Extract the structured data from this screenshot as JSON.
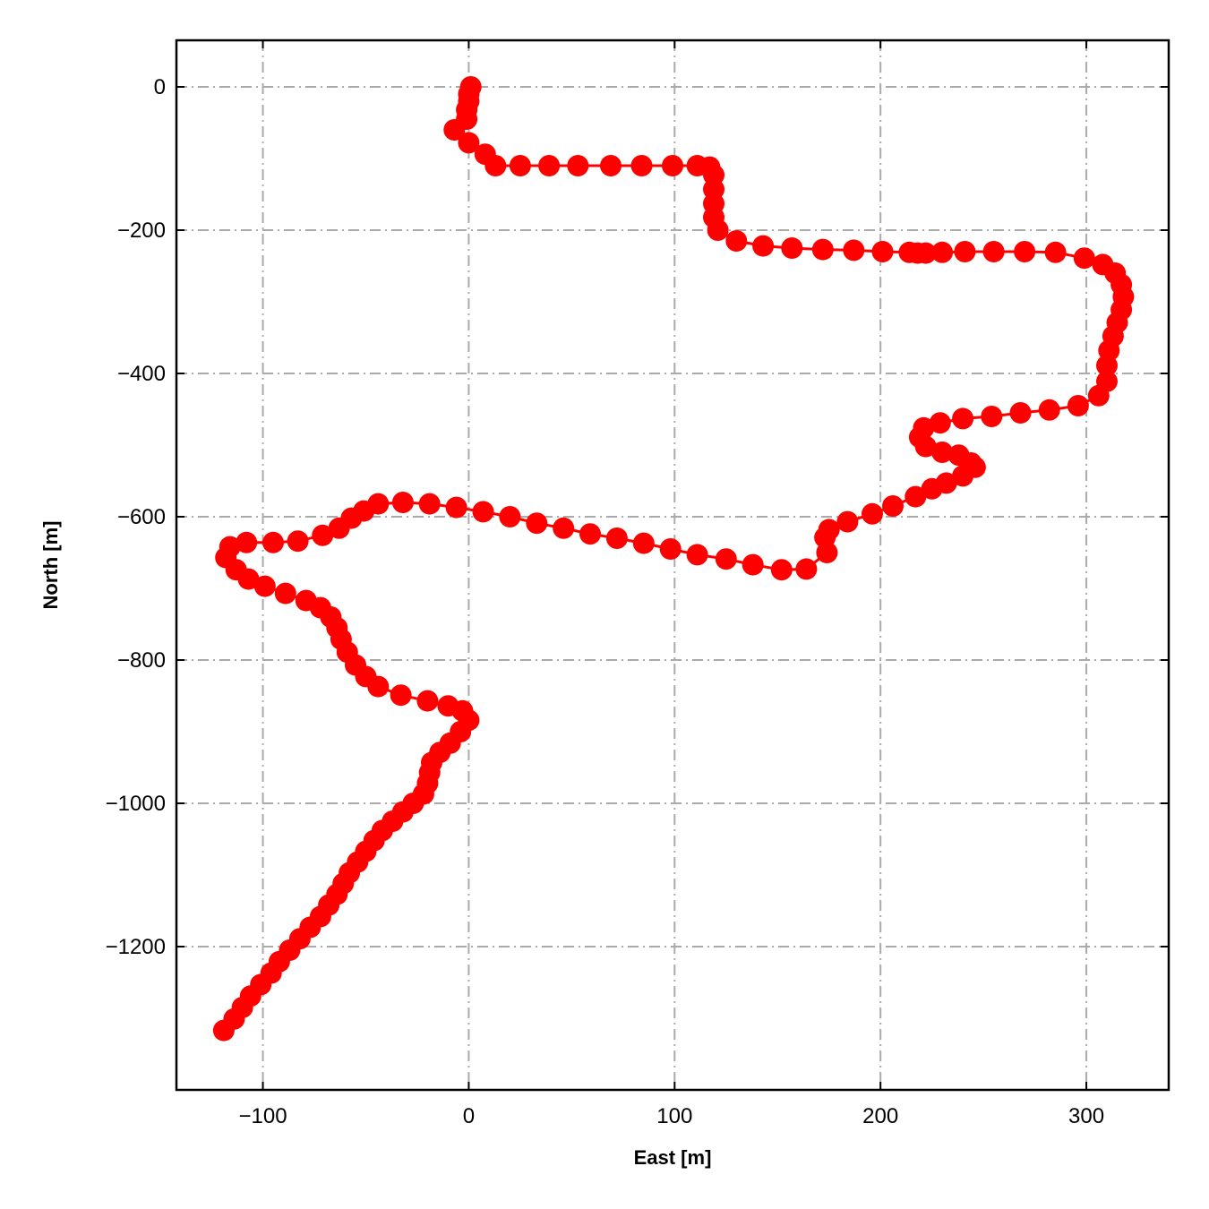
{
  "chart_data": {
    "type": "line",
    "title": "",
    "xlabel": "East [m]",
    "ylabel": "North [m]",
    "xlim": [
      -142,
      340
    ],
    "ylim": [
      -1400,
      65
    ],
    "xticks": [
      -100,
      0,
      100,
      200,
      300
    ],
    "yticks": [
      0,
      -200,
      -400,
      -600,
      -800,
      -1000,
      -1200
    ],
    "xtick_labels": [
      "−100",
      "0",
      "100",
      "200",
      "300"
    ],
    "ytick_labels": [
      "0",
      "−200",
      "−400",
      "−600",
      "−800",
      "−1000",
      "−1200"
    ],
    "grid": true,
    "grid_style": "dash-dot",
    "legend": "none",
    "colors": {
      "series": "#ff0000",
      "grid": "#aaaaaa",
      "frame": "#000000"
    },
    "series": [
      {
        "marker": "circle",
        "x": [
          1,
          0,
          0,
          -1,
          -1,
          -7,
          0,
          8,
          13,
          25,
          39,
          53,
          69,
          84,
          99,
          111,
          117,
          119,
          119,
          119,
          119,
          121,
          130,
          143,
          157,
          172,
          187,
          201,
          214,
          218,
          222,
          230,
          241,
          255,
          270,
          285,
          299,
          308,
          314,
          317,
          318,
          317,
          315,
          313,
          311,
          310,
          310,
          306,
          296,
          282,
          268,
          254,
          240,
          229,
          221,
          219,
          222,
          230,
          238,
          244,
          246,
          240,
          232,
          225,
          217,
          206,
          196,
          184,
          175,
          173,
          174,
          164,
          152,
          138,
          125,
          111,
          98,
          85,
          72,
          59,
          46,
          33,
          20,
          7,
          -6,
          -19,
          -32,
          -44,
          -51,
          -57,
          -63,
          -71,
          -83,
          -95,
          -108,
          -116,
          -118,
          -113,
          -107,
          -99,
          -89,
          -79,
          -72,
          -67,
          -64,
          -62,
          -59,
          -55,
          -50,
          -44,
          -33,
          -20,
          -10,
          -3,
          0,
          -4,
          -9,
          -14,
          -18,
          -19,
          -20,
          -22,
          -27,
          -32,
          -37,
          -42,
          -46,
          -50,
          -54,
          -58,
          -61,
          -64,
          -68,
          -72,
          -77,
          -82,
          -87,
          -92,
          -96,
          -101,
          -106,
          -110,
          -114,
          -119
        ],
        "y": [
          0,
          -10,
          -20,
          -32,
          -45,
          -60,
          -78,
          -94,
          -110,
          -110,
          -110,
          -110,
          -110,
          -110,
          -110,
          -110,
          -112,
          -123,
          -143,
          -163,
          -182,
          -200,
          -215,
          -222,
          -225,
          -227,
          -228,
          -230,
          -231,
          -232,
          -232,
          -231,
          -230,
          -230,
          -230,
          -231,
          -239,
          -248,
          -260,
          -276,
          -293,
          -311,
          -329,
          -348,
          -368,
          -389,
          -411,
          -431,
          -445,
          -451,
          -455,
          -460,
          -463,
          -469,
          -476,
          -489,
          -502,
          -510,
          -514,
          -525,
          -531,
          -543,
          -553,
          -561,
          -572,
          -585,
          -596,
          -607,
          -618,
          -629,
          -650,
          -673,
          -674,
          -667,
          -659,
          -653,
          -645,
          -637,
          -630,
          -624,
          -616,
          -609,
          -600,
          -593,
          -587,
          -582,
          -580,
          -582,
          -592,
          -602,
          -616,
          -626,
          -634,
          -636,
          -636,
          -642,
          -657,
          -674,
          -687,
          -697,
          -707,
          -717,
          -727,
          -740,
          -755,
          -771,
          -789,
          -807,
          -823,
          -837,
          -849,
          -857,
          -864,
          -871,
          -884,
          -900,
          -916,
          -929,
          -943,
          -957,
          -972,
          -987,
          -1000,
          -1012,
          -1025,
          -1038,
          -1052,
          -1067,
          -1082,
          -1097,
          -1112,
          -1127,
          -1142,
          -1158,
          -1173,
          -1189,
          -1205,
          -1221,
          -1237,
          -1253,
          -1269,
          -1285,
          -1301,
          -1317
        ]
      }
    ]
  }
}
